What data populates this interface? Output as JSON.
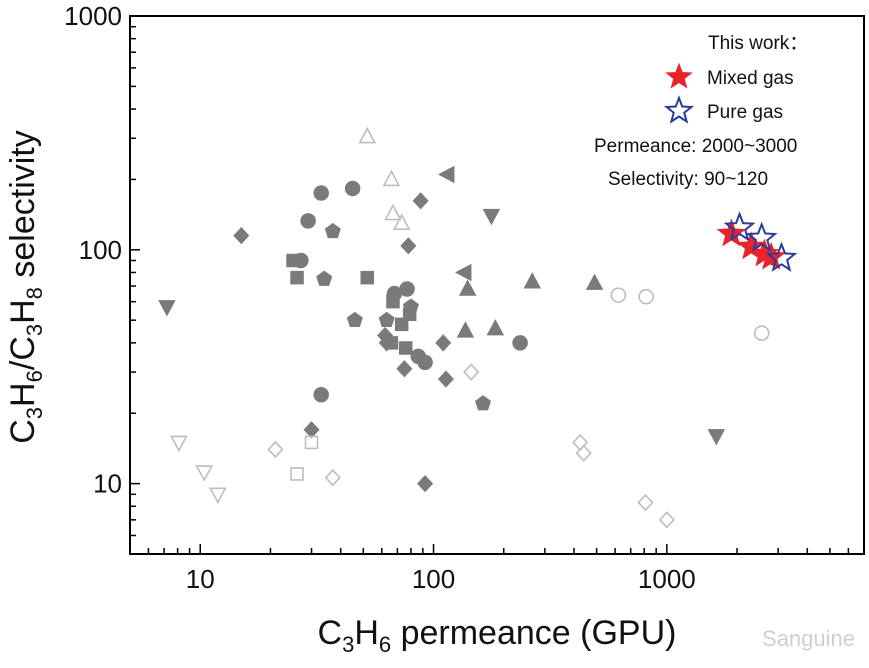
{
  "chart_data": {
    "type": "scatter",
    "xlabel": {
      "main": "C",
      "sub1": "3",
      "mid": "H",
      "sub2": "6",
      "rest": " permeance (GPU)"
    },
    "ylabel": {
      "c1": "C",
      "s1": "3",
      "h1": "H",
      "s2": "6",
      "slash": "/C",
      "s3": "3",
      "h2": "H",
      "s4": "8",
      "rest": " selectivity"
    },
    "x_scale": "log",
    "y_scale": "log",
    "xlim": [
      5,
      7000
    ],
    "ylim": [
      5,
      1000
    ],
    "x_ticks": [
      {
        "value": 10,
        "label": "10"
      },
      {
        "value": 100,
        "label": "100"
      },
      {
        "value": 1000,
        "label": "1000"
      }
    ],
    "y_ticks": [
      {
        "value": 10,
        "label": "10"
      },
      {
        "value": 100,
        "label": "100"
      },
      {
        "value": 1000,
        "label": "1000"
      }
    ],
    "grid": false,
    "colors": {
      "gray_filled": "#7a7a7a",
      "gray_open": "#bdbdbd",
      "mixed_gas": "#e8242a",
      "pure_gas": "#2b3b9a"
    },
    "legend": {
      "position": "top-right",
      "title": "This work：",
      "items": [
        {
          "label": "Mixed gas",
          "marker": "star-filled",
          "color": "#e8242a"
        },
        {
          "label": "Pure gas",
          "marker": "star-open",
          "color": "#2b3b9a"
        }
      ],
      "notes": [
        "Permeance: 2000~3000",
        "Selectivity: 90~120"
      ]
    },
    "series": [
      {
        "marker": "circle",
        "filled": true,
        "points": [
          [
            33,
            175
          ],
          [
            45,
            183
          ],
          [
            29,
            133
          ],
          [
            27,
            90
          ],
          [
            68,
            65
          ],
          [
            77,
            68
          ],
          [
            33,
            24
          ],
          [
            235,
            40
          ],
          [
            86,
            35
          ],
          [
            92,
            33
          ]
        ]
      },
      {
        "marker": "square",
        "filled": true,
        "points": [
          [
            25,
            90
          ],
          [
            26,
            76
          ],
          [
            52,
            76
          ],
          [
            67,
            60
          ],
          [
            73,
            48
          ],
          [
            79,
            53
          ],
          [
            66,
            40
          ],
          [
            76,
            38
          ]
        ]
      },
      {
        "marker": "diamond",
        "filled": true,
        "points": [
          [
            15,
            115
          ],
          [
            88,
            162
          ],
          [
            78,
            104
          ],
          [
            62,
            43
          ],
          [
            63,
            40
          ],
          [
            110,
            40
          ],
          [
            113,
            28
          ],
          [
            75,
            31
          ],
          [
            30,
            17
          ],
          [
            92,
            10
          ]
        ]
      },
      {
        "marker": "pentagon",
        "filled": true,
        "points": [
          [
            37,
            120
          ],
          [
            34,
            75
          ],
          [
            46,
            50
          ],
          [
            63,
            50
          ],
          [
            80,
            57
          ],
          [
            163,
            22
          ]
        ]
      },
      {
        "marker": "triangle-up",
        "filled": true,
        "points": [
          [
            140,
            68
          ],
          [
            137,
            45
          ],
          [
            184,
            46
          ],
          [
            265,
            73
          ],
          [
            490,
            72
          ]
        ]
      },
      {
        "marker": "triangle-down",
        "filled": true,
        "points": [
          [
            7.2,
            57
          ],
          [
            177,
            140
          ],
          [
            1630,
            16
          ]
        ]
      },
      {
        "marker": "triangle-left",
        "filled": true,
        "points": [
          [
            115,
            210
          ],
          [
            136,
            80
          ]
        ]
      },
      {
        "marker": "circle",
        "filled": false,
        "points": [
          [
            620,
            64
          ],
          [
            815,
            63
          ],
          [
            2550,
            44
          ]
        ]
      },
      {
        "marker": "square",
        "filled": false,
        "points": [
          [
            26,
            11
          ],
          [
            30,
            15
          ]
        ]
      },
      {
        "marker": "diamond",
        "filled": false,
        "points": [
          [
            21,
            14
          ],
          [
            37,
            10.6
          ],
          [
            145,
            30
          ],
          [
            425,
            15
          ],
          [
            440,
            13.5
          ],
          [
            810,
            8.3
          ],
          [
            1000,
            7
          ]
        ]
      },
      {
        "marker": "triangle-up",
        "filled": false,
        "points": [
          [
            52,
            305
          ],
          [
            66,
            200
          ],
          [
            67,
            143
          ],
          [
            73,
            130
          ]
        ]
      },
      {
        "marker": "triangle-down",
        "filled": false,
        "points": [
          [
            8.1,
            15
          ],
          [
            10.4,
            11.2
          ],
          [
            11.9,
            9
          ]
        ]
      },
      {
        "name": "Mixed gas",
        "marker": "star",
        "filled": true,
        "points": [
          [
            1890,
            117
          ],
          [
            2300,
            103
          ],
          [
            2620,
            96
          ],
          [
            2800,
            93
          ]
        ]
      },
      {
        "name": "Pure gas",
        "marker": "star",
        "filled": false,
        "points": [
          [
            2050,
            124
          ],
          [
            2550,
            112
          ],
          [
            3100,
            92
          ]
        ]
      }
    ]
  },
  "watermark": "Sanguine"
}
